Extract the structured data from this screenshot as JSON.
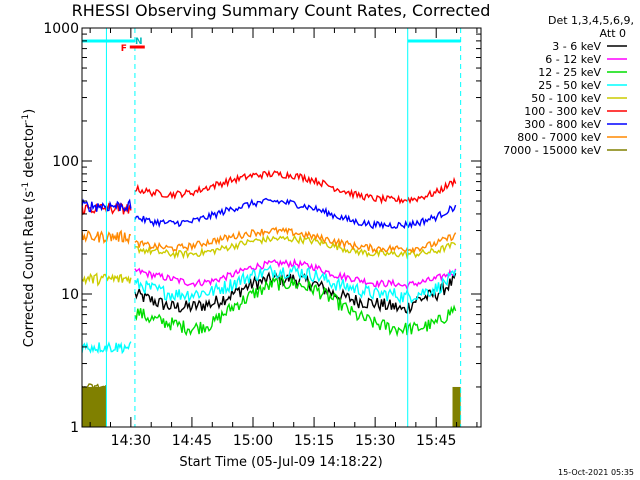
{
  "chart_data": {
    "type": "line",
    "title": "RHESSI Observing Summary Count Rates, Corrected",
    "xlabel": "Start Time (05-Jul-09 14:18:22)",
    "ylabel": "Corrected Count Rate (s",
    "ylabel_sup1": "-1",
    "ylabel_mid": " detector",
    "ylabel_sup2": "-1",
    "ylabel_end": ")",
    "yscale": "log",
    "ylim": [
      1,
      1000
    ],
    "xlim": [
      "14:18",
      "15:56"
    ],
    "x_ticks": [
      "14:30",
      "14:45",
      "15:00",
      "15:15",
      "15:30",
      "15:45"
    ],
    "y_ticks": [
      "1",
      "10",
      "100",
      "1000"
    ],
    "legend_header_1": "Det 1,3,4,5,6,9,",
    "legend_header_2": "Att 0",
    "legend_position": "top-right",
    "timestamp": "15-Oct-2021 05:35",
    "flag_marks": {
      "F": "F",
      "N": "N"
    },
    "series": [
      {
        "name": "3 - 6 keV",
        "color": "#000000",
        "points": [
          [
            "14:31",
            10
          ],
          [
            "14:35",
            9
          ],
          [
            "14:40",
            8
          ],
          [
            "14:45",
            8
          ],
          [
            "14:50",
            8.5
          ],
          [
            "14:55",
            10
          ],
          [
            "15:00",
            12
          ],
          [
            "15:05",
            13
          ],
          [
            "15:10",
            13
          ],
          [
            "15:15",
            12
          ],
          [
            "15:20",
            10
          ],
          [
            "15:25",
            9
          ],
          [
            "15:30",
            8.5
          ],
          [
            "15:35",
            8
          ],
          [
            "15:37",
            7.5
          ],
          [
            "15:40",
            9
          ],
          [
            "15:45",
            10
          ],
          [
            "15:50",
            13
          ]
        ]
      },
      {
        "name": "6 - 12 keV",
        "color": "#ff00ff",
        "points": [
          [
            "14:31",
            15
          ],
          [
            "14:35",
            14
          ],
          [
            "14:40",
            13
          ],
          [
            "14:45",
            12
          ],
          [
            "14:50",
            12.5
          ],
          [
            "14:55",
            14
          ],
          [
            "15:00",
            16
          ],
          [
            "15:05",
            17
          ],
          [
            "15:10",
            17
          ],
          [
            "15:15",
            16
          ],
          [
            "15:20",
            14
          ],
          [
            "15:25",
            13
          ],
          [
            "15:30",
            12
          ],
          [
            "15:35",
            12
          ],
          [
            "15:37",
            11.5
          ],
          [
            "15:40",
            12
          ],
          [
            "15:45",
            13
          ],
          [
            "15:50",
            15
          ]
        ]
      },
      {
        "name": "12 - 25 keV",
        "color": "#00dd00",
        "points": [
          [
            "14:31",
            7.5
          ],
          [
            "14:35",
            6.5
          ],
          [
            "14:40",
            6
          ],
          [
            "14:45",
            5.5
          ],
          [
            "14:50",
            6
          ],
          [
            "14:55",
            8
          ],
          [
            "15:00",
            10
          ],
          [
            "15:05",
            12
          ],
          [
            "15:10",
            12
          ],
          [
            "15:15",
            11
          ],
          [
            "15:20",
            9
          ],
          [
            "15:25",
            7
          ],
          [
            "15:30",
            6
          ],
          [
            "15:35",
            5.5
          ],
          [
            "15:37",
            5.5
          ],
          [
            "15:40",
            5.5
          ],
          [
            "15:45",
            6
          ],
          [
            "15:50",
            8
          ]
        ]
      },
      {
        "name": "25 - 50 keV",
        "color": "#00ffff",
        "points": [
          [
            "14:31",
            12
          ],
          [
            "14:35",
            11
          ],
          [
            "14:40",
            10
          ],
          [
            "14:45",
            10
          ],
          [
            "14:50",
            10.5
          ],
          [
            "14:55",
            12
          ],
          [
            "15:00",
            14
          ],
          [
            "15:05",
            15
          ],
          [
            "15:10",
            15
          ],
          [
            "15:15",
            14
          ],
          [
            "15:20",
            12
          ],
          [
            "15:25",
            11
          ],
          [
            "15:30",
            10
          ],
          [
            "15:35",
            10
          ],
          [
            "15:37",
            9.5
          ],
          [
            "15:40",
            10
          ],
          [
            "15:45",
            11
          ],
          [
            "15:50",
            14
          ]
        ]
      },
      {
        "name": "50 - 100 keV",
        "color": "#cccc00",
        "points": [
          [
            "14:31",
            22
          ],
          [
            "14:35",
            21
          ],
          [
            "14:40",
            20
          ],
          [
            "14:45",
            20
          ],
          [
            "14:50",
            21
          ],
          [
            "14:55",
            23
          ],
          [
            "15:00",
            25
          ],
          [
            "15:05",
            26
          ],
          [
            "15:10",
            26
          ],
          [
            "15:15",
            25
          ],
          [
            "15:20",
            23
          ],
          [
            "15:25",
            21
          ],
          [
            "15:30",
            20
          ],
          [
            "15:35",
            20
          ],
          [
            "15:37",
            20
          ],
          [
            "15:40",
            20
          ],
          [
            "15:45",
            21
          ],
          [
            "15:50",
            24
          ]
        ]
      },
      {
        "name": "100 - 300 keV",
        "color": "#ff0000",
        "points": [
          [
            "14:31",
            62
          ],
          [
            "14:35",
            58
          ],
          [
            "14:40",
            56
          ],
          [
            "14:45",
            58
          ],
          [
            "14:50",
            65
          ],
          [
            "14:55",
            72
          ],
          [
            "15:00",
            78
          ],
          [
            "15:05",
            80
          ],
          [
            "15:10",
            78
          ],
          [
            "15:15",
            72
          ],
          [
            "15:20",
            63
          ],
          [
            "15:25",
            56
          ],
          [
            "15:30",
            52
          ],
          [
            "15:35",
            51
          ],
          [
            "15:37",
            51
          ],
          [
            "15:40",
            52
          ],
          [
            "15:45",
            58
          ],
          [
            "15:50",
            72
          ]
        ]
      },
      {
        "name": "300 - 800 keV",
        "color": "#0000ff",
        "points": [
          [
            "14:31",
            38
          ],
          [
            "14:35",
            35
          ],
          [
            "14:40",
            34
          ],
          [
            "14:45",
            35
          ],
          [
            "14:50",
            39
          ],
          [
            "14:55",
            44
          ],
          [
            "15:00",
            48
          ],
          [
            "15:05",
            50
          ],
          [
            "15:10",
            48
          ],
          [
            "15:15",
            44
          ],
          [
            "15:20",
            39
          ],
          [
            "15:25",
            35
          ],
          [
            "15:30",
            33
          ],
          [
            "15:35",
            33
          ],
          [
            "15:37",
            33
          ],
          [
            "15:40",
            34
          ],
          [
            "15:45",
            38
          ],
          [
            "15:50",
            46
          ]
        ]
      },
      {
        "name": "800 - 7000 keV",
        "color": "#ff8800",
        "points": [
          [
            "14:31",
            24
          ],
          [
            "14:35",
            23
          ],
          [
            "14:40",
            22
          ],
          [
            "14:45",
            23
          ],
          [
            "14:50",
            25
          ],
          [
            "14:55",
            27
          ],
          [
            "15:00",
            29
          ],
          [
            "15:05",
            30
          ],
          [
            "15:10",
            29
          ],
          [
            "15:15",
            27
          ],
          [
            "15:20",
            25
          ],
          [
            "15:25",
            23
          ],
          [
            "15:30",
            22
          ],
          [
            "15:35",
            22
          ],
          [
            "15:37",
            22
          ],
          [
            "15:40",
            22
          ],
          [
            "15:45",
            24
          ],
          [
            "15:50",
            28
          ]
        ]
      },
      {
        "name": "7000 - 15000 keV",
        "color": "#808000",
        "points": [
          [
            "14:18",
            2
          ],
          [
            "14:24",
            2
          ]
        ]
      }
    ]
  }
}
